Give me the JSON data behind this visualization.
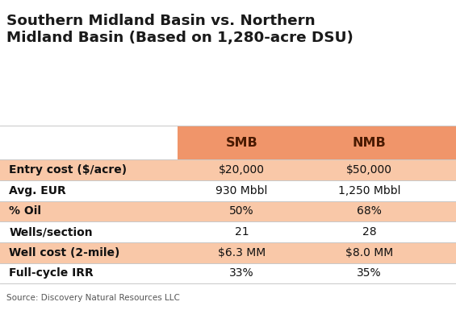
{
  "title_line1": "Southern Midland Basin vs. Northern",
  "title_line2": "Midland Basin (Based on 1,280-acre DSU)",
  "col_headers": [
    "SMB",
    "NMB"
  ],
  "rows": [
    {
      "label": "Entry cost ($/acre)",
      "smb": "$20,000",
      "nmb": "$50,000",
      "shaded": true
    },
    {
      "label": "Avg. EUR",
      "smb": "930 Mbbl",
      "nmb": "1,250 Mbbl",
      "shaded": false
    },
    {
      "label": "% Oil",
      "smb": "50%",
      "nmb": "68%",
      "shaded": true
    },
    {
      "label": "Wells/section",
      "smb": "21",
      "nmb": "28",
      "shaded": false
    },
    {
      "label": "Well cost (2-mile)",
      "smb": "$6.3 MM",
      "nmb": "$8.0 MM",
      "shaded": true
    },
    {
      "label": "Full-cycle IRR",
      "smb": "33%",
      "nmb": "35%",
      "shaded": false
    }
  ],
  "source": "Source: Discovery Natural Resources LLC",
  "header_bg": "#F0956A",
  "shaded_bg": "#F9C8A8",
  "white_bg": "#FFFFFF",
  "title_color": "#1A1A1A",
  "label_color": "#111111",
  "value_color": "#111111",
  "header_text_color": "#4A1A00",
  "bg_color": "#FFFFFF",
  "title_fontsize": 13.2,
  "header_fontsize": 11.5,
  "cell_fontsize": 10.0,
  "source_fontsize": 7.5
}
